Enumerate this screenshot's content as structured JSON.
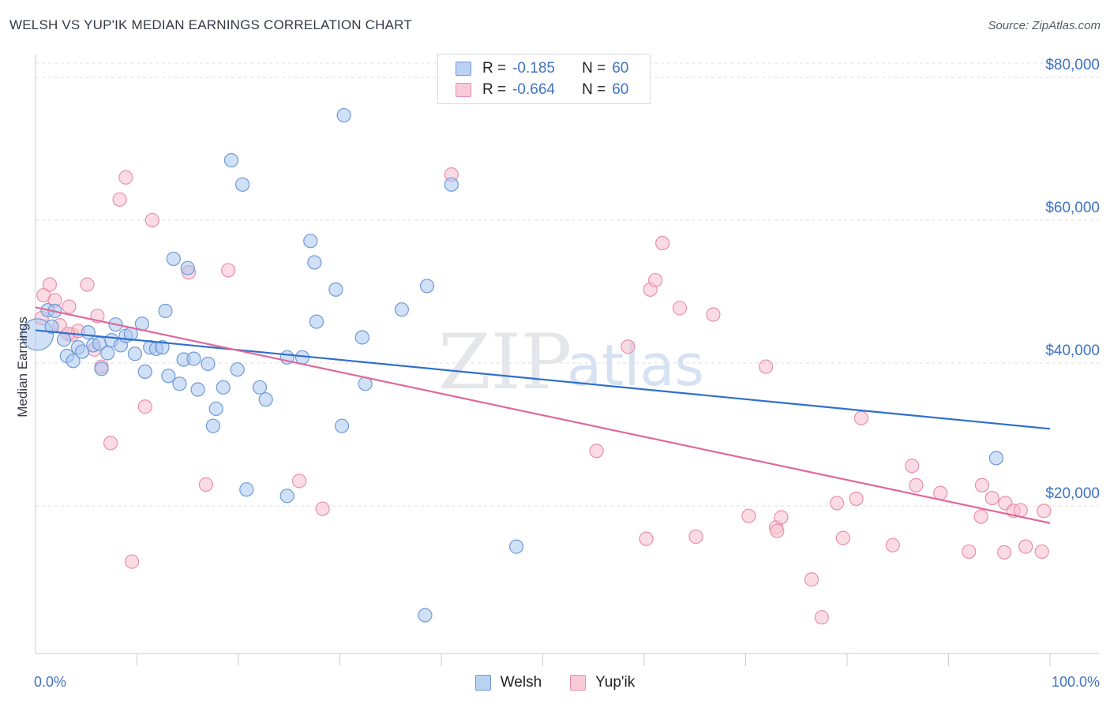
{
  "header": {
    "title": "WELSH VS YUP'IK MEDIAN EARNINGS CORRELATION CHART",
    "source": "Source: ZipAtlas.com"
  },
  "legend": {
    "rows": [
      {
        "r_label": "R =",
        "r_value": "-0.185",
        "n_label": "N =",
        "n_value": "60"
      },
      {
        "r_label": "R =",
        "r_value": "-0.664",
        "n_label": "N =",
        "n_value": "60"
      }
    ]
  },
  "watermark": {
    "zip": "ZIP",
    "atlas": "atlas"
  },
  "colors": {
    "welsh_fill": "#a9c7ef",
    "welsh_stroke": "#6f9ad8",
    "welsh_line": "#2f6fcc",
    "yupik_fill": "#f7bfd0",
    "yupik_stroke": "#ea8fab",
    "yupik_line": "#e0689a",
    "tick_text": "#3f73c4",
    "grid": "#dcdfe4"
  },
  "chart_data": {
    "type": "scatter",
    "title": "WELSH VS YUP'IK MEDIAN EARNINGS CORRELATION CHART",
    "xlabel": "",
    "ylabel": "Median Earnings",
    "xlim": [
      0,
      100
    ],
    "ylim": [
      0,
      82000
    ],
    "x_tick_labels": [
      "0.0%",
      "100.0%"
    ],
    "y_ticks": [
      {
        "value": 20000,
        "label": "$20,000"
      },
      {
        "value": 40000,
        "label": "$40,000"
      },
      {
        "value": 60000,
        "label": "$60,000"
      },
      {
        "value": 80000,
        "label": "$80,000"
      }
    ],
    "grid": true,
    "legend_position": "top-center",
    "series": [
      {
        "name": "Welsh",
        "color": "#a9c7ef",
        "trend": {
          "x": [
            0,
            100
          ],
          "y": [
            44600,
            30800
          ]
        },
        "points": [
          {
            "x": 0.2,
            "y": 44000,
            "big": true
          },
          {
            "x": 1.2,
            "y": 47400
          },
          {
            "x": 1.6,
            "y": 45100
          },
          {
            "x": 2.8,
            "y": 43300
          },
          {
            "x": 3.1,
            "y": 41000
          },
          {
            "x": 3.7,
            "y": 40300
          },
          {
            "x": 4.2,
            "y": 42200
          },
          {
            "x": 4.6,
            "y": 41600
          },
          {
            "x": 5.2,
            "y": 44300
          },
          {
            "x": 5.7,
            "y": 42500
          },
          {
            "x": 6.3,
            "y": 42700
          },
          {
            "x": 6.5,
            "y": 39200
          },
          {
            "x": 7.1,
            "y": 41400
          },
          {
            "x": 7.5,
            "y": 43200
          },
          {
            "x": 7.9,
            "y": 45400
          },
          {
            "x": 8.4,
            "y": 42500
          },
          {
            "x": 8.9,
            "y": 43800
          },
          {
            "x": 9.4,
            "y": 44100
          },
          {
            "x": 9.8,
            "y": 41300
          },
          {
            "x": 10.5,
            "y": 45500
          },
          {
            "x": 10.8,
            "y": 38800
          },
          {
            "x": 11.3,
            "y": 42200
          },
          {
            "x": 11.9,
            "y": 42000
          },
          {
            "x": 12.5,
            "y": 42200
          },
          {
            "x": 12.8,
            "y": 47300
          },
          {
            "x": 13.1,
            "y": 38200
          },
          {
            "x": 13.6,
            "y": 54600
          },
          {
            "x": 14.2,
            "y": 37100
          },
          {
            "x": 14.6,
            "y": 40500
          },
          {
            "x": 15.0,
            "y": 53300
          },
          {
            "x": 15.6,
            "y": 40600
          },
          {
            "x": 16.0,
            "y": 36300
          },
          {
            "x": 17.0,
            "y": 39900
          },
          {
            "x": 17.5,
            "y": 31200
          },
          {
            "x": 17.8,
            "y": 33600
          },
          {
            "x": 18.5,
            "y": 36600
          },
          {
            "x": 19.3,
            "y": 68400
          },
          {
            "x": 19.9,
            "y": 39100
          },
          {
            "x": 20.4,
            "y": 65000
          },
          {
            "x": 20.8,
            "y": 22300
          },
          {
            "x": 22.1,
            "y": 36600
          },
          {
            "x": 22.7,
            "y": 34900
          },
          {
            "x": 24.8,
            "y": 40800
          },
          {
            "x": 24.8,
            "y": 21400
          },
          {
            "x": 27.1,
            "y": 57100
          },
          {
            "x": 27.5,
            "y": 54100
          },
          {
            "x": 27.7,
            "y": 45800
          },
          {
            "x": 29.6,
            "y": 50300
          },
          {
            "x": 30.2,
            "y": 31200
          },
          {
            "x": 30.4,
            "y": 74700
          },
          {
            "x": 32.2,
            "y": 43600
          },
          {
            "x": 32.5,
            "y": 37100
          },
          {
            "x": 36.1,
            "y": 47500
          },
          {
            "x": 38.6,
            "y": 50800
          },
          {
            "x": 38.4,
            "y": 4700
          },
          {
            "x": 41.0,
            "y": 65000
          },
          {
            "x": 47.4,
            "y": 14300
          },
          {
            "x": 94.7,
            "y": 26700
          },
          {
            "x": 1.9,
            "y": 47300
          },
          {
            "x": 26.3,
            "y": 40800
          }
        ]
      },
      {
        "name": "Yup'ik",
        "color": "#f7bfd0",
        "trend": {
          "x": [
            0,
            100
          ],
          "y": [
            47800,
            17600
          ]
        },
        "points": [
          {
            "x": 0.6,
            "y": 46300
          },
          {
            "x": 0.8,
            "y": 49500
          },
          {
            "x": 1.4,
            "y": 51000
          },
          {
            "x": 1.9,
            "y": 48800
          },
          {
            "x": 2.4,
            "y": 45300
          },
          {
            "x": 3.3,
            "y": 47900
          },
          {
            "x": 3.6,
            "y": 44000
          },
          {
            "x": 4.2,
            "y": 44500
          },
          {
            "x": 5.1,
            "y": 51000
          },
          {
            "x": 5.8,
            "y": 41900
          },
          {
            "x": 6.1,
            "y": 46600
          },
          {
            "x": 6.5,
            "y": 39500
          },
          {
            "x": 7.4,
            "y": 28800
          },
          {
            "x": 8.3,
            "y": 62900
          },
          {
            "x": 8.9,
            "y": 66000
          },
          {
            "x": 9.5,
            "y": 12200
          },
          {
            "x": 10.8,
            "y": 33900
          },
          {
            "x": 11.5,
            "y": 60000
          },
          {
            "x": 15.1,
            "y": 52700
          },
          {
            "x": 16.8,
            "y": 23000
          },
          {
            "x": 19.0,
            "y": 53000
          },
          {
            "x": 26.0,
            "y": 23500
          },
          {
            "x": 28.3,
            "y": 19600
          },
          {
            "x": 41.0,
            "y": 66400
          },
          {
            "x": 55.3,
            "y": 27700
          },
          {
            "x": 58.4,
            "y": 42300
          },
          {
            "x": 60.2,
            "y": 15400
          },
          {
            "x": 60.6,
            "y": 50300
          },
          {
            "x": 61.1,
            "y": 51600
          },
          {
            "x": 61.8,
            "y": 56800
          },
          {
            "x": 63.5,
            "y": 47700
          },
          {
            "x": 65.1,
            "y": 15700
          },
          {
            "x": 66.8,
            "y": 46800
          },
          {
            "x": 70.3,
            "y": 18600
          },
          {
            "x": 72.0,
            "y": 39500
          },
          {
            "x": 73.0,
            "y": 17000
          },
          {
            "x": 73.1,
            "y": 16500
          },
          {
            "x": 73.5,
            "y": 18400
          },
          {
            "x": 76.5,
            "y": 9700
          },
          {
            "x": 77.5,
            "y": 4400
          },
          {
            "x": 79.0,
            "y": 20400
          },
          {
            "x": 79.6,
            "y": 15500
          },
          {
            "x": 80.9,
            "y": 21000
          },
          {
            "x": 81.4,
            "y": 32300
          },
          {
            "x": 84.5,
            "y": 14500
          },
          {
            "x": 86.4,
            "y": 25600
          },
          {
            "x": 86.8,
            "y": 22900
          },
          {
            "x": 89.2,
            "y": 21800
          },
          {
            "x": 92.0,
            "y": 13600
          },
          {
            "x": 93.3,
            "y": 22900
          },
          {
            "x": 93.2,
            "y": 18500
          },
          {
            "x": 94.3,
            "y": 21100
          },
          {
            "x": 95.5,
            "y": 13500
          },
          {
            "x": 95.6,
            "y": 20400
          },
          {
            "x": 96.4,
            "y": 19300
          },
          {
            "x": 97.1,
            "y": 19400
          },
          {
            "x": 97.6,
            "y": 14300
          },
          {
            "x": 99.2,
            "y": 13600
          },
          {
            "x": 99.4,
            "y": 19300
          },
          {
            "x": 3.2,
            "y": 44100
          }
        ]
      }
    ]
  }
}
